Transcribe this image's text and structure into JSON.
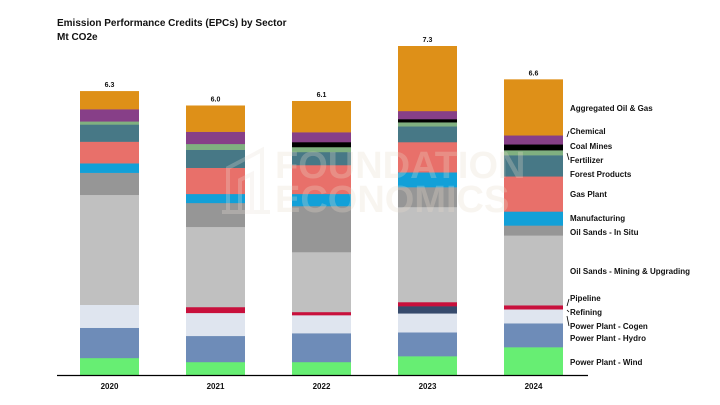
{
  "chart_data": {
    "type": "bar",
    "stacked": true,
    "title": "Emission Performance Credits (EPCs) by Sector",
    "subtitle": "Mt CO2e",
    "watermark": "FOUNDATION ECONOMICS",
    "categories": [
      "2020",
      "2021",
      "2022",
      "2023",
      "2024"
    ],
    "totals": [
      "6.3",
      "6.0",
      "6.1",
      "7.3",
      "6.6"
    ],
    "ylim": [
      0,
      7.3
    ],
    "legend_position": "right",
    "series": [
      {
        "name": "Power Plant - Wind",
        "color": "#67ee73",
        "values": [
          0.38,
          0.29,
          0.29,
          0.42,
          0.62
        ]
      },
      {
        "name": "Power Plant - Hydro",
        "color": "#6e8cb8",
        "values": [
          0.67,
          0.58,
          0.64,
          0.53,
          0.53
        ]
      },
      {
        "name": "Power Plant - Cogen",
        "color": "#dfe5ef",
        "values": [
          0.51,
          0.51,
          0.4,
          0.42,
          0.31
        ]
      },
      {
        "name": "Refining",
        "color": "#364a6c",
        "values": [
          0,
          0,
          0,
          0.16,
          0
        ]
      },
      {
        "name": "Pipeline",
        "color": "#c8103c",
        "values": [
          0,
          0.13,
          0.07,
          0.09,
          0.09
        ]
      },
      {
        "name": "Oil Sands - Mining & Upgrading",
        "color": "#c0c0c0",
        "values": [
          2.44,
          1.78,
          1.33,
          2.11,
          1.55
        ]
      },
      {
        "name": "Oil Sands - In Situ",
        "color": "#969696",
        "values": [
          0.49,
          0.53,
          1.02,
          0.44,
          0.22
        ]
      },
      {
        "name": "Manufacturing",
        "color": "#12a0d8",
        "values": [
          0.21,
          0.2,
          0.27,
          0.33,
          0.31
        ]
      },
      {
        "name": "Gas Plant",
        "color": "#e8706a",
        "values": [
          0.48,
          0.58,
          0.64,
          0.67,
          0.78
        ]
      },
      {
        "name": "Forest Products",
        "color": "#477886",
        "values": [
          0.38,
          0.4,
          0.29,
          0.35,
          0.47
        ]
      },
      {
        "name": "Fertilizer",
        "color": "#80b080",
        "values": [
          0.07,
          0.13,
          0.11,
          0.09,
          0.11
        ]
      },
      {
        "name": "Coal Mines",
        "color": "#000000",
        "values": [
          0,
          0,
          0.11,
          0.07,
          0.13
        ]
      },
      {
        "name": "Chemical",
        "color": "#873f88",
        "values": [
          0.27,
          0.27,
          0.22,
          0.18,
          0.2
        ]
      },
      {
        "name": "Aggregated Oil & Gas",
        "color": "#de9018",
        "values": [
          0.4,
          0.58,
          0.69,
          1.44,
          1.24
        ]
      }
    ]
  }
}
